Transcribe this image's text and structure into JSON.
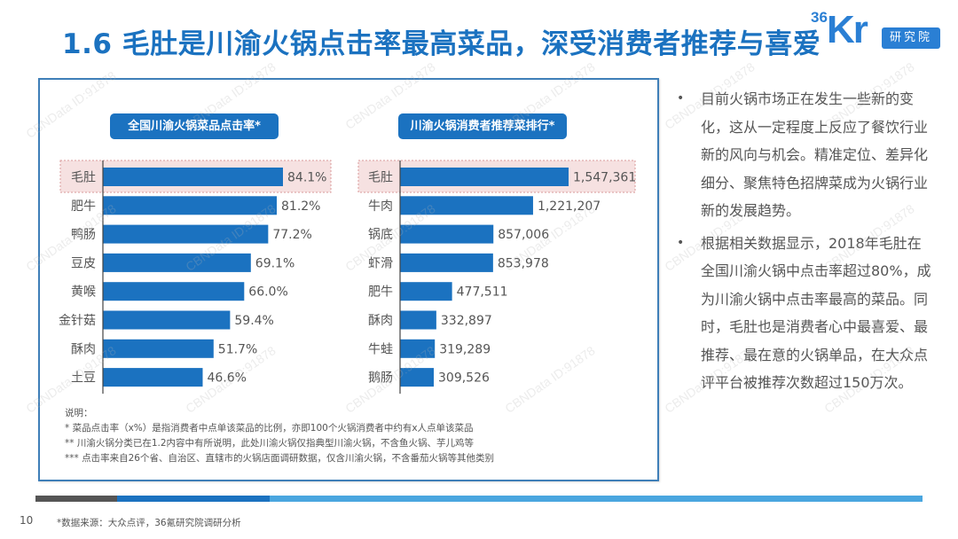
{
  "header": {
    "title": "1.6 毛肚是川渝火锅点击率最高菜品，深受消费者推荐与喜爱",
    "logo": {
      "superscript": "36",
      "main": "Kr",
      "badge": "研究院"
    }
  },
  "colors": {
    "accent": "#1b72c0",
    "bar": "#1b72c0",
    "highlight_fill": "#f6e1e1",
    "highlight_border": "#d99a9a",
    "panel_border": "#3f7fb8"
  },
  "chart_data": [
    {
      "type": "bar",
      "orientation": "horizontal",
      "title": "全国川渝火锅菜品点击率*",
      "categories": [
        "毛肚",
        "肥牛",
        "鸭肠",
        "豆皮",
        "黄喉",
        "金针菇",
        "酥肉",
        "土豆"
      ],
      "values": [
        84.1,
        81.2,
        77.2,
        69.1,
        66.0,
        59.4,
        51.7,
        46.6
      ],
      "value_labels": [
        "84.1%",
        "81.2%",
        "77.2%",
        "69.1%",
        "66.0%",
        "59.4%",
        "51.7%",
        "46.6%"
      ],
      "unit": "%",
      "highlighted_category": "毛肚",
      "xlabel": "",
      "ylabel": "",
      "xlim": [
        0,
        100
      ],
      "grid": false
    },
    {
      "type": "bar",
      "orientation": "horizontal",
      "title": "川渝火锅消费者推荐菜排行*",
      "categories": [
        "毛肚",
        "牛肉",
        "锅底",
        "虾滑",
        "肥牛",
        "酥肉",
        "牛蛙",
        "鹅肠"
      ],
      "values": [
        1547361,
        1221207,
        857006,
        853978,
        477511,
        332897,
        319289,
        309526
      ],
      "value_labels": [
        "1,547,361",
        "1,221,207",
        "857,006",
        "853,978",
        "477,511",
        "332,897",
        "319,289",
        "309,526"
      ],
      "unit": "次",
      "highlighted_category": "毛肚",
      "xlabel": "",
      "ylabel": "",
      "xlim": [
        0,
        2000000
      ],
      "grid": false
    }
  ],
  "notes": {
    "heading": "说明：",
    "lines": [
      "* 菜品点击率（x%）是指消费者中点单该菜品的比例，亦即100个火锅消费者中约有x人点单该菜品",
      "** 川渝火锅分类已在1.2内容中有所说明，此处川渝火锅仅指典型川渝火锅，不含鱼火锅、芋儿鸡等",
      "*** 点击率来自26个省、自治区、直辖市的火锅店面调研数据，仅含川渝火锅，不含番茄火锅等其他类别"
    ]
  },
  "bullets": [
    {
      "icon": "bullet-dot",
      "text": "目前火锅市场正在发生一些新的变化，这从一定程度上反应了餐饮行业新的风向与机会。精准定位、差异化细分、聚焦特色招牌菜成为火锅行业新的发展趋势。"
    },
    {
      "icon": "bullet-dot",
      "text": "根据相关数据显示，2018年毛肚在全国川渝火锅中点击率超过80%，成为川渝火锅中点击率最高的菜品。同时，毛肚也是消费者心中最喜爱、最推荐、最在意的火锅单品，在大众点评平台被推荐次数超过150万次。"
    }
  ],
  "footer": {
    "page_number": "10",
    "source": "*数据来源：大众点评，36氪研究院调研分析"
  },
  "watermark": "CBNData ID:91878"
}
